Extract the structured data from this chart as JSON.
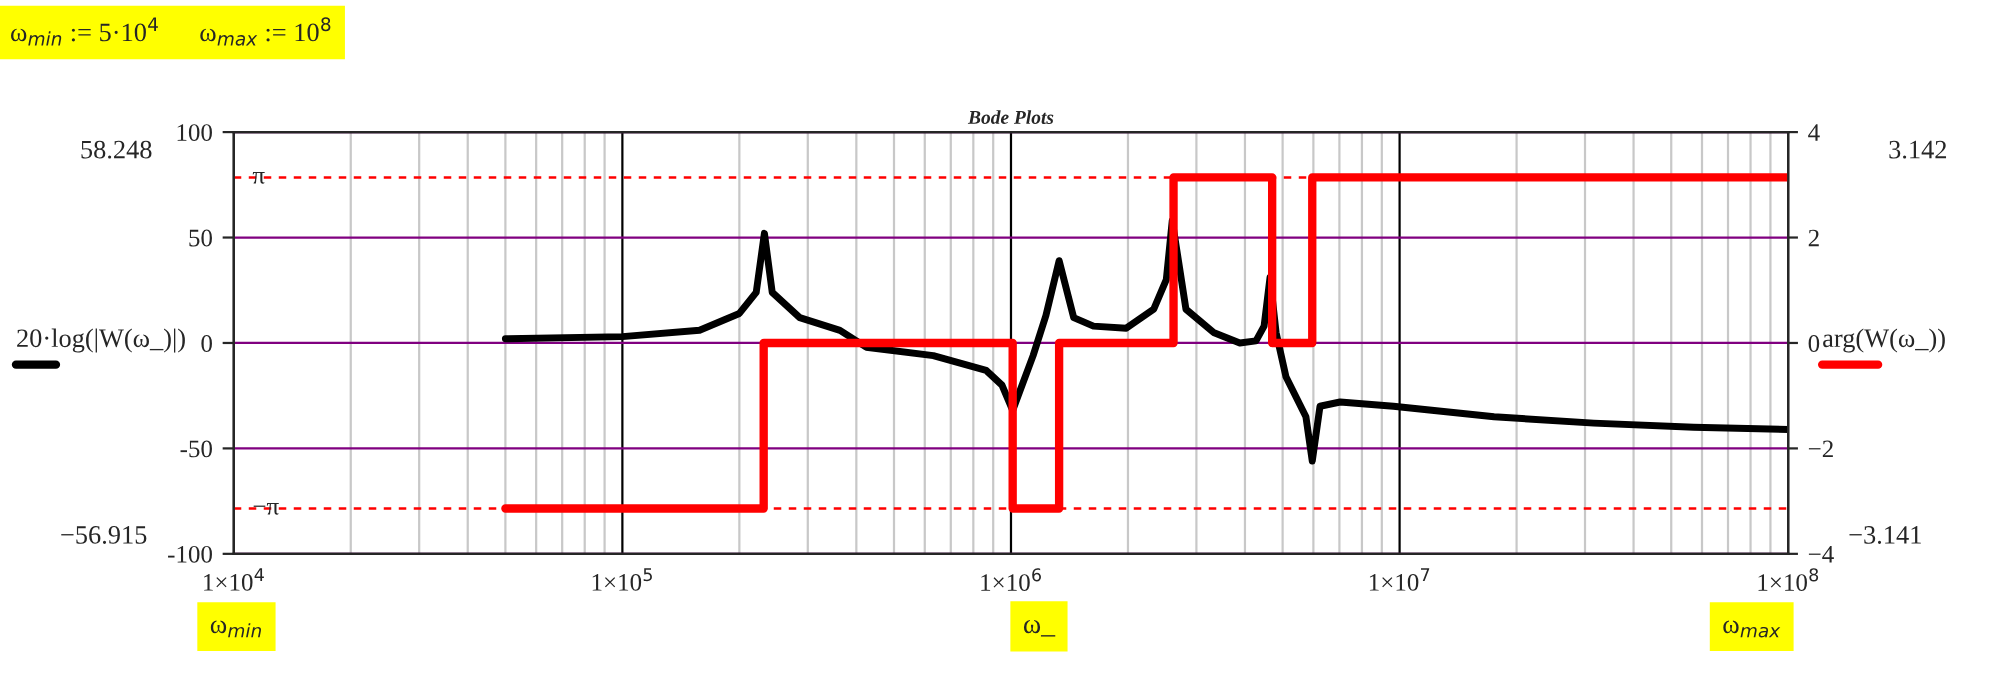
{
  "chart_data": {
    "type": "line",
    "title": "Bode Plots",
    "xlabel": "ω_",
    "ylabel": "20·log(|W(ω_)|)",
    "y2label": "arg(W(ω_))",
    "annotations": [
      "ω$_{min}$ := 5·10$^{4}$      ω$_{max}$ := 10$^{8}$",
      "58.248",
      "−56.915",
      "3.142",
      "−3.141",
      "ω$_{min}$",
      "ω$_{max}$"
    ],
    "log": "x",
    "grid": true,
    "legend": false,
    "xlim": [
      10000,
      100000000
    ],
    "xticks": [
      {
        "value": 10000,
        "label": "1×10$^{4}$"
      },
      {
        "value": 100000,
        "label": "1×10$^{5}$"
      },
      {
        "value": 1000000,
        "label": "1×10$^{6}$"
      },
      {
        "value": 10000000,
        "label": "1×10$^{7}$"
      },
      {
        "value": 100000000,
        "label": "1×10$^{8}$"
      }
    ],
    "ylim": [
      -100,
      100
    ],
    "yticks": [
      -100,
      -50,
      0,
      50,
      100
    ],
    "y2lim": [
      -4,
      4
    ],
    "y2ticks": [
      {
        "value": -4,
        "label": "−4"
      },
      {
        "value": -2,
        "label": "−2"
      },
      0,
      2,
      4
    ],
    "ref_lines": [
      {
        "axis": "y2",
        "value": 3.14,
        "label": "π",
        "color": "#ff0000",
        "line_style": "dashed"
      },
      {
        "axis": "y2",
        "value": -3.14,
        "label": "−π",
        "color": "#ff0000",
        "line_style": "dashed"
      }
    ],
    "series": [
      {
        "color": "#000000",
        "x": [
          50000,
          100000,
          158000,
          200000,
          221000,
          232000,
          243000,
          286000,
          363000,
          424000,
          631000,
          863000,
          948000,
          1010000,
          1140000,
          1230000,
          1330000,
          1450000,
          1630000,
          1980000,
          2330000,
          2510000,
          2600000,
          2820000,
          3320000,
          3880000,
          4270000,
          4480000,
          4640000,
          4810000,
          5100000,
          5740000,
          5960000,
          6240000,
          7030000,
          9640000,
          17500000,
          31600000,
          57100000,
          100000000
        ],
        "values": [
          2,
          3,
          6,
          14,
          24,
          52,
          24,
          12,
          6,
          -2,
          -6,
          -13,
          -20,
          -32,
          -6,
          13,
          39,
          12,
          8,
          7,
          16,
          30,
          58,
          16,
          5,
          0,
          1,
          8,
          31,
          5,
          -16,
          -35,
          -56,
          -30,
          -28,
          -30,
          -35,
          -38,
          -40,
          -41
        ]
      },
      {
        "type": "step",
        "axis": "y2",
        "color": "#ff0000",
        "x": [
          50000,
          231000,
          1010000,
          1330000,
          2620000,
          4700000,
          5960000,
          100000000
        ],
        "values": [
          -3.14,
          0,
          -3.14,
          0,
          3.14,
          0,
          3.14,
          3.14
        ]
      }
    ]
  }
}
